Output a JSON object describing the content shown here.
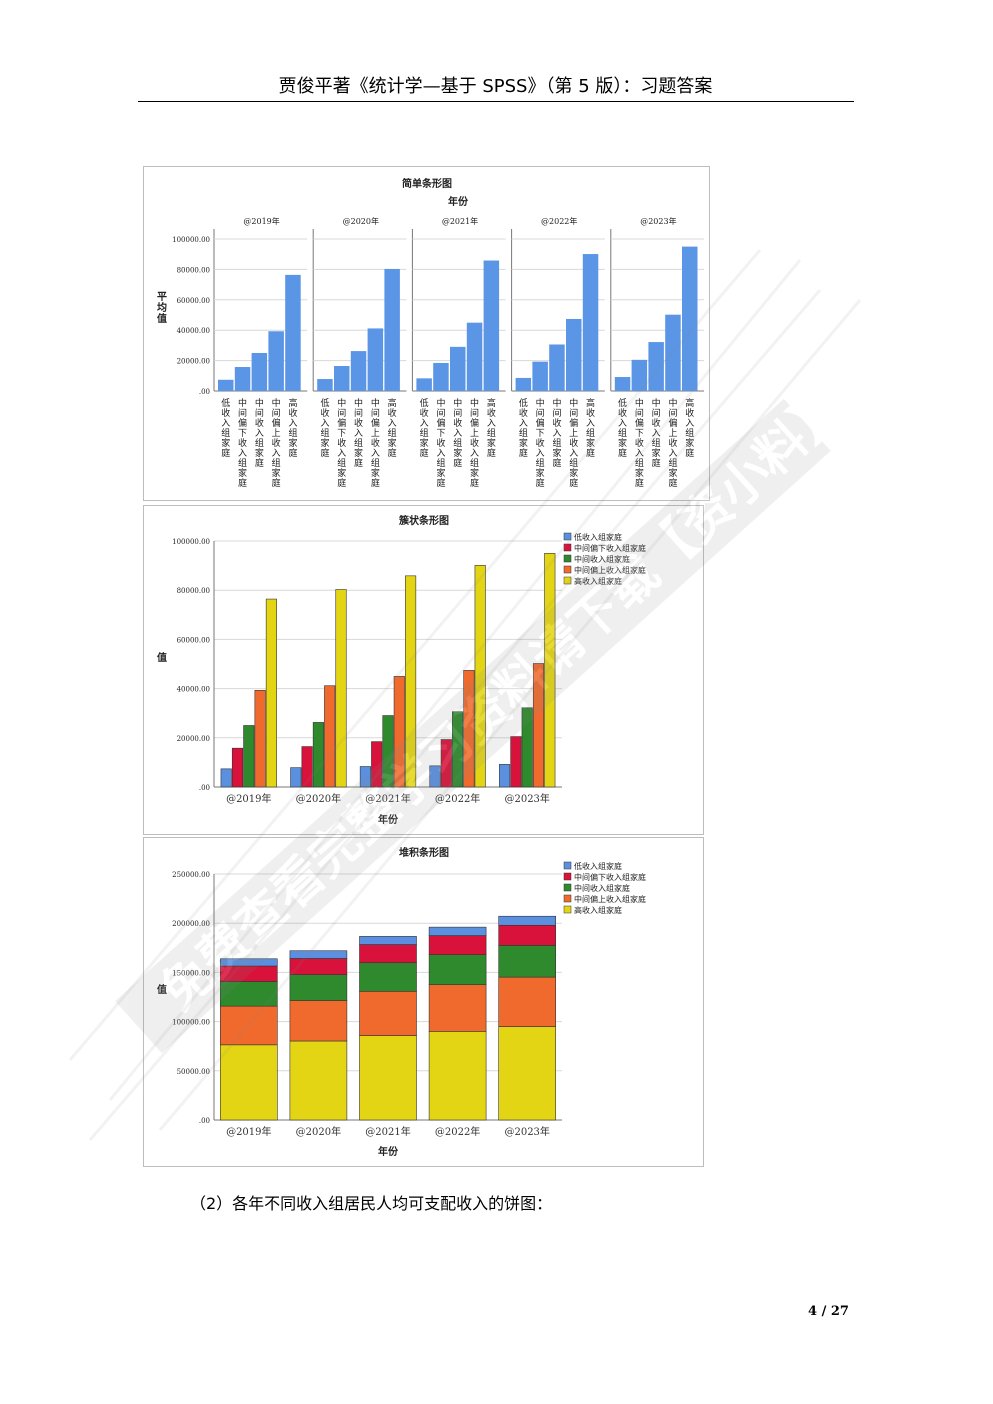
{
  "page_header": "贾俊平著《统计学—基于 SPSS》（第 5 版）：习题答案",
  "question_text": "（2）各年不同收入组居民人均可支配收入的饼图：",
  "page_number": "4 / 27",
  "watermark_text": "免费查看完整学习资料请下载【资小料】APP",
  "colors": {
    "simple_bar": "#5b96e6",
    "series": [
      "#5b8fe0",
      "#d8123a",
      "#2e8a2c",
      "#ef6a2c",
      "#e3d514"
    ]
  },
  "chart_data": [
    {
      "type": "bar",
      "title": "简单条形图",
      "panel_axis_label": "年份",
      "ylabel": "平均值",
      "panels": [
        "@2019年",
        "@2020年",
        "@2021年",
        "@2022年",
        "@2023年"
      ],
      "categories": [
        "低收入组家庭",
        "中间偏下收入组家庭",
        "中间收入组家庭",
        "中间偏上收入组家庭",
        "高收入组家庭"
      ],
      "values": [
        [
          7380,
          15780,
          25000,
          39300,
          76400
        ],
        [
          7870,
          16440,
          26250,
          41170,
          80290
        ],
        [
          8330,
          18450,
          29050,
          44950,
          85840
        ],
        [
          8600,
          19300,
          30600,
          47400,
          90100
        ],
        [
          9200,
          20500,
          32200,
          50200,
          95000
        ]
      ],
      "ylim": [
        0,
        100000
      ],
      "yticks": [
        "100000.00",
        "80000.00",
        "60000.00",
        "40000.00",
        "20000.00",
        ".00"
      ],
      "grid": true
    },
    {
      "type": "bar",
      "title": "簇状条形图",
      "xlabel": "年份",
      "ylabel": "值",
      "categories": [
        "@2019年",
        "@2020年",
        "@2021年",
        "@2022年",
        "@2023年"
      ],
      "series": [
        {
          "name": "低收入组家庭",
          "values": [
            7380,
            7870,
            8330,
            8600,
            9200
          ]
        },
        {
          "name": "中间偏下收入组家庭",
          "values": [
            15780,
            16440,
            18450,
            19300,
            20500
          ]
        },
        {
          "name": "中间收入组家庭",
          "values": [
            25000,
            26250,
            29050,
            30600,
            32200
          ]
        },
        {
          "name": "中间偏上收入组家庭",
          "values": [
            39300,
            41170,
            44950,
            47400,
            50200
          ]
        },
        {
          "name": "高收入组家庭",
          "values": [
            76400,
            80290,
            85840,
            90100,
            95000
          ]
        }
      ],
      "ylim": [
        0,
        100000
      ],
      "yticks": [
        "100000.00",
        "80000.00",
        "60000.00",
        "40000.00",
        "20000.00",
        ".00"
      ],
      "legend": "top-right",
      "grid": true
    },
    {
      "type": "bar",
      "stacked": true,
      "title": "堆积条形图",
      "xlabel": "年份",
      "ylabel": "值",
      "categories": [
        "@2019年",
        "@2020年",
        "@2021年",
        "@2022年",
        "@2023年"
      ],
      "series": [
        {
          "name": "低收入组家庭",
          "values": [
            7380,
            7870,
            8330,
            8600,
            9200
          ]
        },
        {
          "name": "中间偏下收入组家庭",
          "values": [
            15780,
            16440,
            18450,
            19300,
            20500
          ]
        },
        {
          "name": "中间收入组家庭",
          "values": [
            25000,
            26250,
            29050,
            30600,
            32200
          ]
        },
        {
          "name": "中间偏上收入组家庭",
          "values": [
            39300,
            41170,
            44950,
            47400,
            50200
          ]
        },
        {
          "name": "高收入组家庭",
          "values": [
            76400,
            80290,
            85840,
            90100,
            95000
          ]
        }
      ],
      "stack_order_bottom_to_top": [
        4,
        3,
        2,
        1,
        0
      ],
      "ylim": [
        0,
        250000
      ],
      "yticks": [
        "250000.00",
        "200000.00",
        "150000.00",
        "100000.00",
        "50000.00",
        ".00"
      ],
      "legend": "top-right",
      "grid": true
    }
  ]
}
